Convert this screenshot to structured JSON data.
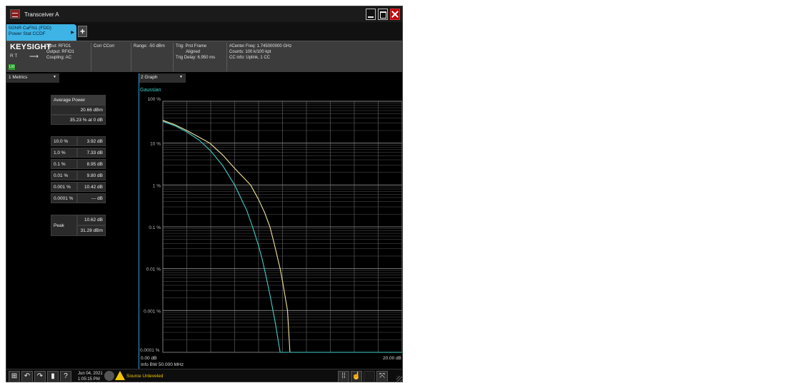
{
  "window": {
    "title": "Transceiver A"
  },
  "mode_tab": {
    "line1": "5GNR CaFN1 (FDD)",
    "line2": "Power Stat CCDF",
    "add_label": "+"
  },
  "settings_bar": {
    "brand": "KEYSIGHT",
    "rt": "R  T",
    "lxi": "LXI",
    "input": "Input: RFIO1",
    "output": "Output: RFIO1",
    "coupling": "Coupling: AC",
    "corr": "Corr CCorr",
    "range": "Range: -50 dBm",
    "trig_source": "Trig: Prst Frame",
    "trig_aligned": "Aligned",
    "trig_delay": "Trig Delay: 6.950 ms",
    "center_freq": "#Center Freq: 1.745000000 GHz",
    "counts": "Counts: 100 k/100 kpt",
    "cc_info": "CC info: Uplink, 1 CC"
  },
  "metrics_panel": {
    "header": "1 Metrics",
    "average_power_label": "Average Power",
    "average_power_value": "20.66 dBm",
    "average_power_pct": "35.23 % at 0 dB",
    "rows": [
      {
        "label": "10.0 %",
        "value": "3.92 dB"
      },
      {
        "label": "1.0 %",
        "value": "7.33 dB"
      },
      {
        "label": "0.1 %",
        "value": "8.95 dB"
      },
      {
        "label": "0.01 %",
        "value": "9.80 dB"
      },
      {
        "label": "0.001 %",
        "value": "10.42 dB"
      },
      {
        "label": "0.0001 %",
        "value": "--- dB"
      }
    ],
    "peak_label": "Peak",
    "peak_db": "10.62 dB",
    "peak_dbm": "31.28 dBm"
  },
  "graph_panel": {
    "header": "2 Graph",
    "legend_gaussian": "Gaussian",
    "y_labels": [
      "100 %",
      "10 %",
      "1 %",
      "0.1 %",
      "0.01 %",
      "0.001 %",
      "0.0001 %"
    ],
    "x_left": "0.00 dB",
    "x_right": "20.00 dB",
    "info_bw": "Info BW 50.000 MHz"
  },
  "chart_data": {
    "type": "line",
    "x_unit": "dB",
    "y_unit": "%",
    "xlim": [
      0,
      20
    ],
    "ylim": [
      0.0001,
      100
    ],
    "y_scale": "log",
    "grid": true,
    "series": [
      {
        "name": "Gaussian",
        "color": "#3fd0c8",
        "x": [
          0,
          1,
          2,
          3,
          4,
          5,
          6,
          7,
          7.5,
          8,
          8.3,
          8.6,
          9.0,
          9.4,
          9.8,
          10.5
        ],
        "y": [
          33,
          26,
          18.5,
          12,
          6.5,
          2.9,
          1.0,
          0.25,
          0.1,
          0.035,
          0.017,
          0.007,
          0.002,
          0.0005,
          0.0001,
          0.0001
        ]
      },
      {
        "name": "",
        "color": "#f2e49a",
        "x": [
          0,
          1,
          2,
          3,
          3.92,
          5,
          6,
          7.33,
          8,
          8.5,
          8.95,
          9.3,
          9.8,
          10.0,
          10.42,
          10.62
        ],
        "y": [
          35,
          27.5,
          20,
          14,
          10,
          5.2,
          2.5,
          1.0,
          0.45,
          0.22,
          0.1,
          0.04,
          0.01,
          0.005,
          0.001,
          0.0001
        ]
      }
    ]
  },
  "taskbar": {
    "date": "Jun 04, 2021",
    "time": "1:05:15 PM",
    "status": "Source Unleveled"
  },
  "colors": {
    "accent": "#3db3e6",
    "warning": "#f2c500",
    "close": "#c40000"
  }
}
